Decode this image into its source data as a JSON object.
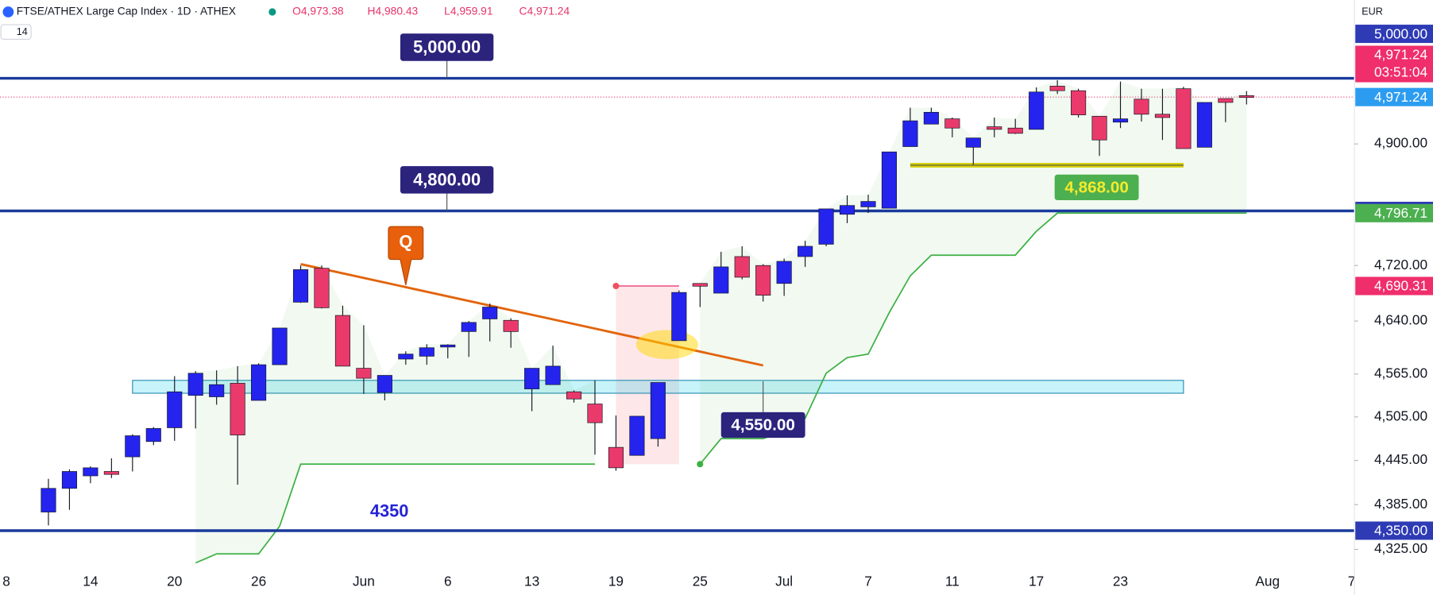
{
  "header": {
    "title": "FTSE/ATHEX Large Cap Index · 1D · ATHEX",
    "ohlc_labels": [
      "O4,973.38",
      "H4,980.43",
      "L4,959.91",
      "C4,971.24"
    ],
    "indicator": "14",
    "currency": "EUR"
  },
  "chart_data": {
    "type": "candlestick",
    "log_scale": true,
    "categories": [
      "8",
      null,
      null,
      null,
      "14",
      null,
      null,
      null,
      "20",
      null,
      null,
      null,
      "26",
      null,
      null,
      null,
      null,
      "Jun",
      null,
      null,
      null,
      "6",
      null,
      null,
      null,
      "13",
      null,
      null,
      null,
      "19",
      null,
      null,
      null,
      "25",
      null,
      null,
      null,
      "Jul",
      null,
      null,
      null,
      "7",
      null,
      null,
      null,
      "11",
      null,
      null,
      null,
      "17",
      null,
      null,
      null,
      "23",
      null,
      null,
      null,
      null,
      null,
      null,
      "Aug",
      null,
      null,
      null,
      "7"
    ],
    "open": [
      null,
      null,
      4375,
      4407,
      4424,
      4430,
      4450,
      4471,
      4490,
      4535,
      4533,
      4552,
      4528,
      4578,
      4667,
      4716,
      4648,
      4573,
      4539,
      4586,
      4590,
      4603,
      4625,
      4643,
      4641,
      4544,
      4550,
      4540,
      4523,
      4463,
      4452,
      4475,
      4612,
      4694,
      4680,
      4733,
      4720,
      4694,
      4733,
      4751,
      4795,
      4806,
      4804,
      4896,
      4930,
      4938,
      4895,
      4926,
      4924,
      4922,
      4988,
      4981,
      4942,
      4933,
      4968,
      4945,
      4984,
      4895,
      4969,
      4973.38,
      null,
      null,
      null,
      null,
      null
    ],
    "high": [
      null,
      null,
      4420,
      4433,
      4437,
      4448,
      4481,
      4491,
      4562,
      4569,
      4570,
      4576,
      4580,
      4630,
      4720,
      4720,
      4662,
      4634,
      4563,
      4597,
      4607,
      4607,
      4640,
      4665,
      4644,
      4573,
      4605,
      4542,
      4556,
      4507,
      4506,
      4553,
      4684,
      4694,
      4740,
      4748,
      4722,
      4730,
      4756,
      4803,
      4823,
      4824,
      4888,
      4955,
      4955,
      4940,
      4909,
      4940,
      4938,
      4986,
      4997,
      4984,
      4942,
      4995,
      4984,
      4984,
      4987,
      4963,
      4969,
      4980.43,
      null,
      null,
      null,
      null,
      null
    ],
    "low": [
      null,
      null,
      4357,
      4378,
      4414,
      4421,
      4430,
      4466,
      4472,
      4489,
      4522,
      4412,
      4528,
      4578,
      4666,
      4658,
      4576,
      4537,
      4528,
      4578,
      4578,
      4587,
      4589,
      4611,
      4602,
      4513,
      4550,
      4525,
      4453,
      4431,
      4452,
      4464,
      4612,
      4660,
      4680,
      4700,
      4668,
      4676,
      4718,
      4748,
      4782,
      4797,
      4804,
      4896,
      4930,
      4910,
      4869,
      4910,
      4915,
      4922,
      4976,
      4940,
      4882,
      4924,
      4934,
      4906,
      4893,
      4895,
      4933,
      4959.91,
      null,
      null,
      null,
      null,
      null
    ],
    "close": [
      null,
      null,
      4407,
      4430,
      4435,
      4426,
      4479,
      4489,
      4540,
      4566,
      4550,
      4480,
      4578,
      4630,
      4714,
      4659,
      4576,
      4559,
      4563,
      4593,
      4602,
      4606,
      4638,
      4660,
      4625,
      4573,
      4576,
      4530,
      4497,
      4435,
      4506,
      4553,
      4681,
      4690,
      4718,
      4703,
      4677,
      4726,
      4748,
      4803,
      4808,
      4814,
      4888,
      4935,
      4948,
      4924,
      4909,
      4922,
      4916,
      4979,
      4981,
      4944,
      4906,
      4938,
      4945,
      4940,
      4893,
      4963,
      4963,
      4971.24,
      null,
      null,
      null,
      null,
      null
    ],
    "up_color": "#2424ee",
    "down_color": "#ea3a6c",
    "ylim": [
      4296,
      5122
    ],
    "yticks": [
      {
        "value": 4325,
        "label": "4,325.00"
      },
      {
        "value": 4385,
        "label": "4,385.00"
      },
      {
        "value": 4445,
        "label": "4,445.00"
      },
      {
        "value": 4505,
        "label": "4,505.00"
      },
      {
        "value": 4565,
        "label": "4,565.00"
      },
      {
        "value": 4640,
        "label": "4,640.00"
      },
      {
        "value": 4720,
        "label": "4,720.00"
      },
      {
        "value": 4900,
        "label": "4,900.00"
      }
    ],
    "last_price": {
      "value": 4971.24,
      "label": "4,971.24",
      "countdown": "03:51:04"
    },
    "levels": [
      {
        "value": 5000,
        "label": "5,000.00"
      },
      {
        "value": 4800,
        "label": "4,800.00"
      },
      {
        "value": 4350,
        "label": "4,350.00",
        "text": "4350"
      }
    ],
    "stop_line": {
      "color": "#3cb043",
      "last_label": "4,796.71",
      "values": [
        null,
        null,
        null,
        null,
        null,
        null,
        null,
        null,
        null,
        4307,
        4319,
        4319,
        4319,
        4356,
        4440,
        4440,
        4440,
        4440,
        4440,
        4440,
        4440,
        4440,
        4440,
        4440,
        4440,
        4440,
        4440,
        4440,
        4440,
        null,
        null,
        null,
        null,
        4440,
        4475,
        4475,
        4475,
        4485,
        4503,
        4566,
        4588,
        4593,
        4652,
        4705,
        4735,
        4735,
        4735,
        4735,
        4735,
        4770,
        4796.71,
        4796.71,
        4796.71,
        4796.71,
        4796.71,
        4796.71,
        4796.71,
        4796.71,
        4796.71,
        4796.71,
        null,
        null,
        null,
        null,
        null
      ]
    },
    "zone": {
      "top": 4556,
      "bottom": 4538,
      "start": 6,
      "end": 56,
      "label": "4,550.00"
    },
    "support": {
      "value": 4868,
      "start": 43,
      "end": 56,
      "label": "4,868.00"
    },
    "range_box": {
      "start": 29,
      "end": 32,
      "top": 4690.31,
      "bottom": 4440,
      "label": "4,690.31"
    },
    "trend_line": {
      "from": [
        14,
        4722
      ],
      "to": [
        36,
        4577
      ],
      "color": "#e2640c",
      "marker_text": "Q"
    }
  }
}
